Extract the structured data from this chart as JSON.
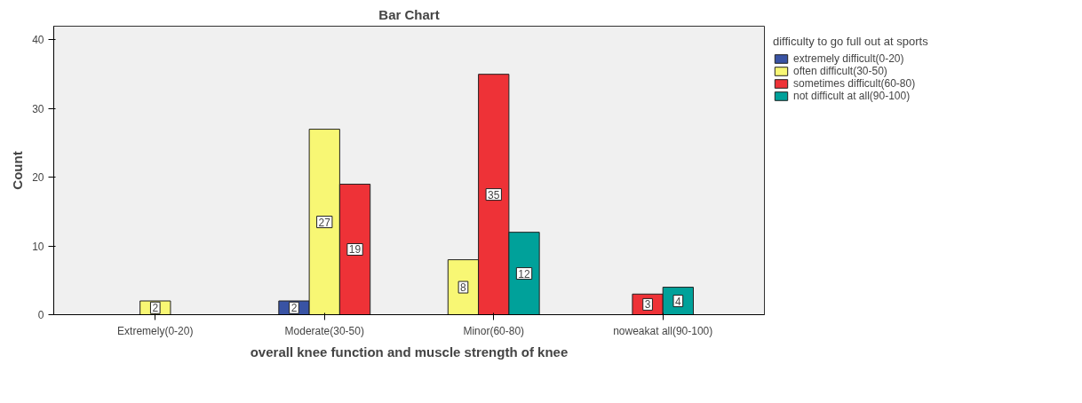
{
  "chart_data": {
    "type": "bar",
    "title": "Bar Chart",
    "xlabel": "overall knee function and muscle strength of knee",
    "ylabel": "Count",
    "legend_title": "difficulty to go full out at sports",
    "categories": [
      "Extremely(0-20)",
      "Moderate(30-50)",
      "Minor(60-80)",
      "noweakat all(90-100)"
    ],
    "series": [
      {
        "name": "extremely difficult(0-20)",
        "color": "#3953a4",
        "values": [
          null,
          2,
          null,
          null
        ]
      },
      {
        "name": "often difficult(30-50)",
        "color": "#f8f774",
        "values": [
          2,
          27,
          8,
          null
        ]
      },
      {
        "name": "sometimes difficult(60-80)",
        "color": "#ee3237",
        "values": [
          null,
          19,
          35,
          3
        ]
      },
      {
        "name": "not difficult at all(90-100)",
        "color": "#00a19a",
        "values": [
          null,
          null,
          12,
          4
        ]
      }
    ],
    "ylim": [
      0,
      42
    ],
    "yticks": [
      0,
      10,
      20,
      30,
      40
    ],
    "grid": false,
    "legend": "top right",
    "data_labels": true
  }
}
